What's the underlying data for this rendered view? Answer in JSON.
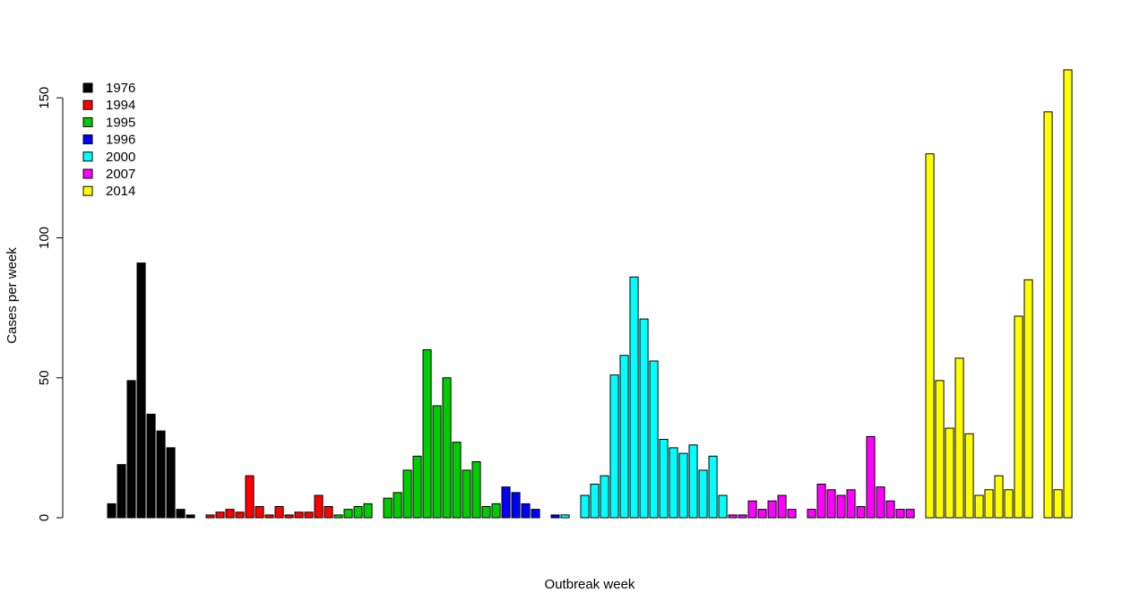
{
  "chart_data": {
    "type": "bar",
    "title": "",
    "xlabel": "Outbreak week",
    "ylabel": "Cases per week",
    "ylim": [
      0,
      160
    ],
    "yticks": [
      "0",
      "50",
      "100",
      "150"
    ],
    "grid": false,
    "legend_position": "top-left",
    "series": [
      {
        "name": "1976",
        "color": "#000000",
        "values": [
          5,
          19,
          49,
          91,
          37,
          31,
          25,
          3,
          1,
          0
        ]
      },
      {
        "name": "1994",
        "color": "#ff0000",
        "values": [
          1,
          2,
          3,
          2,
          15,
          4,
          1,
          4,
          1,
          2,
          2,
          8,
          4
        ]
      },
      {
        "name": "1995",
        "color": "#00cd00",
        "values": [
          1,
          3,
          4,
          5,
          0,
          7,
          9,
          17,
          22,
          60,
          40,
          50,
          27,
          17,
          20,
          4,
          5
        ]
      },
      {
        "name": "1996",
        "color": "#0000ff",
        "values": [
          11,
          9,
          5,
          3,
          0,
          1
        ]
      },
      {
        "name": "2000",
        "color": "#00ffff",
        "values": [
          1,
          0,
          8,
          12,
          15,
          51,
          58,
          86,
          71,
          56,
          28,
          25,
          23,
          26,
          17,
          22,
          8
        ]
      },
      {
        "name": "2007",
        "color": "#ff00ff",
        "values": [
          1,
          1,
          6,
          3,
          6,
          8,
          3,
          0,
          3,
          12,
          10,
          8,
          10,
          4,
          29,
          11,
          6,
          3,
          3
        ]
      },
      {
        "name": "2014",
        "color": "#ffff00",
        "values": [
          0,
          130,
          49,
          32,
          57,
          30,
          8,
          10,
          15,
          10,
          72,
          85,
          0,
          145,
          10,
          160
        ]
      }
    ]
  }
}
